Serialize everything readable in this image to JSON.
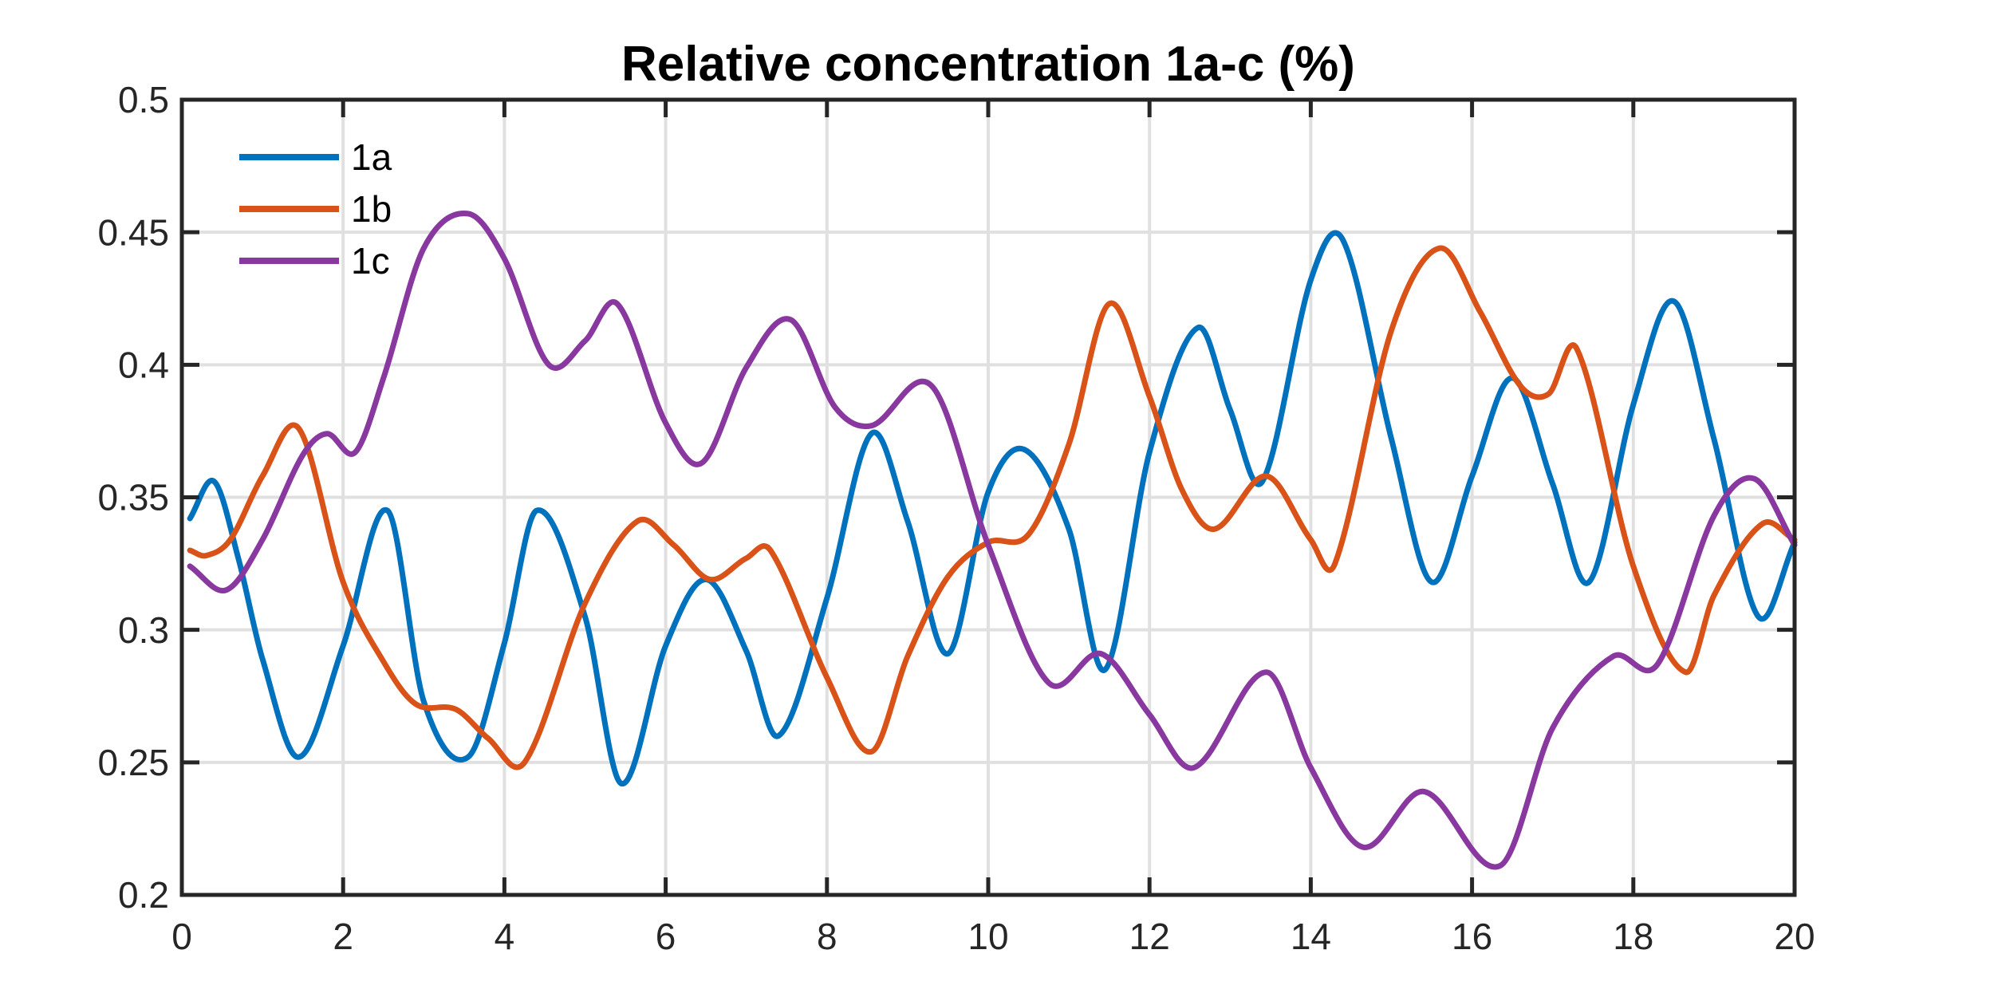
{
  "figure": {
    "background": "#FFFFFF"
  },
  "chart_data": {
    "type": "line",
    "title": "Relative concentration 1a-c (%)",
    "xlabel": "",
    "ylabel": "",
    "xlim": [
      0,
      20
    ],
    "ylim": [
      0.2,
      0.5
    ],
    "xticks": [
      0,
      2,
      4,
      6,
      8,
      10,
      12,
      14,
      16,
      18,
      20
    ],
    "yticks": [
      0.2,
      0.25,
      0.3,
      0.35,
      0.4,
      0.45,
      0.5
    ],
    "ytick_labels": [
      "0.2",
      "0.25",
      "0.3",
      "0.35",
      "0.4",
      "0.45",
      "0.5"
    ],
    "grid": true,
    "box": true,
    "axis_color": "#262626",
    "grid_color": "#E0E0E0",
    "tick_label_color": "#262626",
    "legend": {
      "position": "top-left-inside",
      "border": false,
      "labels": [
        "1a",
        "1b",
        "1c"
      ]
    },
    "series": [
      {
        "name": "1a",
        "color": "#0072BD",
        "points": [
          [
            0.1,
            0.342
          ],
          [
            0.4,
            0.356
          ],
          [
            0.7,
            0.327
          ],
          [
            1.0,
            0.289
          ],
          [
            1.45,
            0.252
          ],
          [
            2.0,
            0.294
          ],
          [
            2.55,
            0.345
          ],
          [
            3.0,
            0.273
          ],
          [
            3.55,
            0.252
          ],
          [
            4.0,
            0.295
          ],
          [
            4.4,
            0.345
          ],
          [
            5.0,
            0.305
          ],
          [
            5.45,
            0.242
          ],
          [
            6.0,
            0.294
          ],
          [
            6.5,
            0.319
          ],
          [
            7.0,
            0.292
          ],
          [
            7.4,
            0.26
          ],
          [
            8.0,
            0.312
          ],
          [
            8.55,
            0.374
          ],
          [
            9.0,
            0.341
          ],
          [
            9.5,
            0.291
          ],
          [
            10.0,
            0.352
          ],
          [
            10.45,
            0.368
          ],
          [
            11.0,
            0.338
          ],
          [
            11.45,
            0.285
          ],
          [
            12.0,
            0.367
          ],
          [
            12.6,
            0.414
          ],
          [
            13.0,
            0.383
          ],
          [
            13.4,
            0.356
          ],
          [
            14.0,
            0.432
          ],
          [
            14.4,
            0.447
          ],
          [
            15.0,
            0.372
          ],
          [
            15.5,
            0.318
          ],
          [
            16.0,
            0.358
          ],
          [
            16.5,
            0.395
          ],
          [
            17.0,
            0.355
          ],
          [
            17.45,
            0.318
          ],
          [
            18.0,
            0.385
          ],
          [
            18.5,
            0.424
          ],
          [
            19.0,
            0.372
          ],
          [
            19.55,
            0.305
          ],
          [
            20.0,
            0.333
          ]
        ]
      },
      {
        "name": "1b",
        "color": "#D95319",
        "points": [
          [
            0.1,
            0.33
          ],
          [
            0.3,
            0.328
          ],
          [
            0.6,
            0.334
          ],
          [
            1.0,
            0.358
          ],
          [
            1.45,
            0.376
          ],
          [
            2.0,
            0.318
          ],
          [
            2.5,
            0.288
          ],
          [
            2.9,
            0.272
          ],
          [
            3.4,
            0.27
          ],
          [
            3.8,
            0.259
          ],
          [
            4.25,
            0.25
          ],
          [
            5.0,
            0.31
          ],
          [
            5.65,
            0.341
          ],
          [
            6.1,
            0.332
          ],
          [
            6.55,
            0.319
          ],
          [
            7.0,
            0.327
          ],
          [
            7.3,
            0.33
          ],
          [
            8.0,
            0.282
          ],
          [
            8.55,
            0.254
          ],
          [
            9.0,
            0.29
          ],
          [
            9.5,
            0.32
          ],
          [
            10.0,
            0.333
          ],
          [
            10.5,
            0.336
          ],
          [
            11.0,
            0.37
          ],
          [
            11.5,
            0.423
          ],
          [
            12.0,
            0.388
          ],
          [
            12.4,
            0.353
          ],
          [
            12.8,
            0.338
          ],
          [
            13.45,
            0.358
          ],
          [
            14.0,
            0.334
          ],
          [
            14.3,
            0.325
          ],
          [
            15.0,
            0.413
          ],
          [
            15.6,
            0.444
          ],
          [
            16.1,
            0.42
          ],
          [
            16.6,
            0.392
          ],
          [
            16.95,
            0.389
          ],
          [
            17.3,
            0.406
          ],
          [
            18.0,
            0.324
          ],
          [
            18.65,
            0.284
          ],
          [
            19.0,
            0.313
          ],
          [
            19.6,
            0.34
          ],
          [
            20.0,
            0.334
          ]
        ]
      },
      {
        "name": "1c",
        "color": "#88389E",
        "points": [
          [
            0.1,
            0.324
          ],
          [
            0.55,
            0.315
          ],
          [
            1.0,
            0.334
          ],
          [
            1.5,
            0.366
          ],
          [
            1.8,
            0.374
          ],
          [
            2.15,
            0.367
          ],
          [
            2.5,
            0.395
          ],
          [
            3.0,
            0.444
          ],
          [
            3.55,
            0.457
          ],
          [
            4.0,
            0.44
          ],
          [
            4.55,
            0.4
          ],
          [
            5.0,
            0.409
          ],
          [
            5.4,
            0.423
          ],
          [
            6.0,
            0.378
          ],
          [
            6.45,
            0.363
          ],
          [
            7.0,
            0.399
          ],
          [
            7.55,
            0.417
          ],
          [
            8.1,
            0.384
          ],
          [
            8.55,
            0.377
          ],
          [
            9.3,
            0.392
          ],
          [
            10.0,
            0.332
          ],
          [
            10.75,
            0.28
          ],
          [
            11.4,
            0.291
          ],
          [
            12.0,
            0.268
          ],
          [
            12.55,
            0.248
          ],
          [
            13.45,
            0.284
          ],
          [
            14.0,
            0.248
          ],
          [
            14.65,
            0.218
          ],
          [
            15.4,
            0.239
          ],
          [
            16.35,
            0.211
          ],
          [
            17.0,
            0.263
          ],
          [
            17.75,
            0.29
          ],
          [
            18.3,
            0.287
          ],
          [
            19.0,
            0.343
          ],
          [
            19.5,
            0.357
          ],
          [
            20.0,
            0.332
          ]
        ]
      }
    ]
  }
}
